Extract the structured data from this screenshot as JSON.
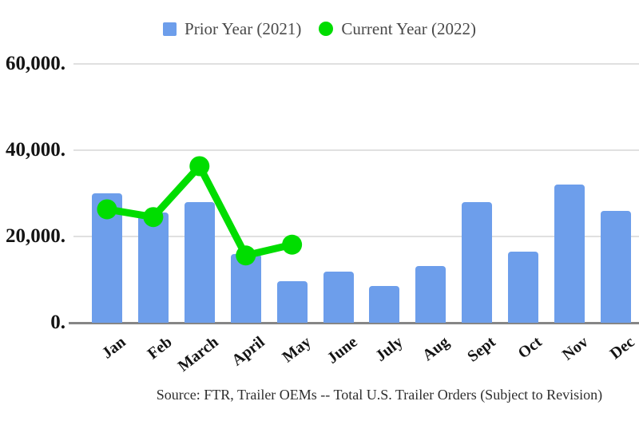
{
  "source_note": "Source: FTR, Trailer OEMs -- Total U.S. Trailer Orders (Subject to Revision)",
  "colors": {
    "bar_blue": "#6d9eeb",
    "line_green": "#00dd00",
    "gridline": "#e0e0e0",
    "axis_line": "#868686"
  },
  "chart_data": {
    "type": "bar",
    "subtype": "bar-with-line-overlay",
    "categories": [
      "Jan",
      "Feb",
      "March",
      "April",
      "May",
      "June",
      "July",
      "Aug",
      "Sept",
      "Oct",
      "Nov",
      "Dec"
    ],
    "series": [
      {
        "name": "Prior Year (2021)",
        "type": "bar",
        "color": "#6d9eeb",
        "values": [
          30000,
          25500,
          28000,
          16000,
          9700,
          11900,
          8500,
          13200,
          28000,
          16500,
          32000,
          26000
        ]
      },
      {
        "name": "Current Year (2022)",
        "type": "line",
        "color": "#00dd00",
        "values": [
          26300,
          24500,
          36300,
          15600,
          18100,
          null,
          null,
          null,
          null,
          null,
          null,
          null
        ]
      }
    ],
    "title": "",
    "xlabel": "",
    "ylabel": "",
    "ylim": [
      0,
      60000
    ],
    "yticks": [
      0,
      20000,
      40000,
      60000
    ],
    "ytick_labels": [
      "0.",
      "20,000.",
      "40,000.",
      "60,000."
    ],
    "grid": true,
    "legend_position": "top"
  }
}
